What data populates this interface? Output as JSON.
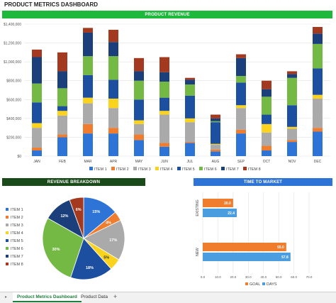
{
  "header": {
    "title": "PRODUCT METRICS DASHBOARD"
  },
  "colors": {
    "green_banner": "#1eb83c",
    "dark_green_banner": "#1a4a1a",
    "blue_banner": "#2e73d6",
    "items": [
      "#2e73d6",
      "#f07d2e",
      "#aaaaaa",
      "#fbd21c",
      "#1c4fa0",
      "#73b944",
      "#1a3f7a",
      "#a33a1f"
    ]
  },
  "chart_data": [
    {
      "type": "bar",
      "stacked": true,
      "title": "PRODUCT REVENUE",
      "categories": [
        "JAN",
        "FEB",
        "MAR",
        "APR",
        "MAY",
        "JUN",
        "JUL",
        "AUG",
        "SEP",
        "OCT",
        "NOV",
        "DEC"
      ],
      "ylim": [
        0,
        1400000
      ],
      "yticks": [
        "$0",
        "$200,000",
        "$400,000",
        "$600,000",
        "$800,000",
        "$1,000,000",
        "$1,200,000",
        "$1,400,000"
      ],
      "legend_position": "bottom",
      "series": [
        {
          "name": "ITEM 1",
          "values": [
            60000,
            200000,
            240000,
            240000,
            170000,
            100000,
            140000,
            50000,
            240000,
            60000,
            150000,
            260000
          ]
        },
        {
          "name": "ITEM 2",
          "values": [
            30000,
            30000,
            100000,
            60000,
            60000,
            40000,
            10000,
            20000,
            40000,
            50000,
            20000,
            40000
          ]
        },
        {
          "name": "ITEM 3",
          "values": [
            210000,
            200000,
            220000,
            210000,
            110000,
            300000,
            210000,
            50000,
            230000,
            140000,
            120000,
            310000
          ]
        },
        {
          "name": "ITEM 4",
          "values": [
            50000,
            50000,
            60000,
            100000,
            40000,
            40000,
            40000,
            10000,
            30000,
            90000,
            20000,
            40000
          ]
        },
        {
          "name": "ITEM 5",
          "values": [
            220000,
            50000,
            240000,
            200000,
            220000,
            140000,
            240000,
            230000,
            240000,
            100000,
            230000,
            280000
          ]
        },
        {
          "name": "ITEM 6",
          "values": [
            200000,
            190000,
            200000,
            250000,
            200000,
            170000,
            120000,
            10000,
            70000,
            190000,
            290000,
            260000
          ]
        },
        {
          "name": "ITEM 7",
          "values": [
            280000,
            180000,
            250000,
            150000,
            100000,
            100000,
            50000,
            30000,
            190000,
            80000,
            40000,
            110000
          ]
        },
        {
          "name": "ITEM 8",
          "values": [
            80000,
            200000,
            50000,
            130000,
            140000,
            160000,
            20000,
            40000,
            40000,
            90000,
            30000,
            70000
          ]
        }
      ]
    },
    {
      "type": "pie",
      "title": "REVENUE BREAKDOWN",
      "legend_position": "left",
      "labels": [
        "ITEM 1",
        "ITEM 2",
        "ITEM 3",
        "ITEM 4",
        "ITEM 5",
        "ITEM 6",
        "ITEM 7",
        "ITEM 8"
      ],
      "values": [
        15,
        4,
        17,
        5,
        18,
        30,
        12,
        6
      ],
      "data_labels": [
        "15%",
        "4%",
        "17%",
        "5%",
        "18%",
        "30%",
        "12%",
        "6%"
      ]
    },
    {
      "type": "bar",
      "orientation": "horizontal",
      "title": "TIME TO MARKET",
      "categories": [
        "EXISTING",
        "NEW"
      ],
      "xlim": [
        0,
        70
      ],
      "xticks": [
        "0.0",
        "10.0",
        "20.0",
        "30.0",
        "40.0",
        "50.0",
        "60.0",
        "70.0"
      ],
      "legend_position": "bottom",
      "series": [
        {
          "name": "GOAL",
          "values": [
            20.0,
            55.0
          ],
          "labels": [
            "20.0",
            "55.0"
          ]
        },
        {
          "name": "DAYS",
          "values": [
            22.4,
            57.8
          ],
          "labels": [
            "22.4",
            "57.8"
          ]
        }
      ]
    }
  ],
  "tabs": {
    "active": "Product Metrics Dashboard",
    "other": "Product Data",
    "add": "+",
    "nav": "▸"
  }
}
